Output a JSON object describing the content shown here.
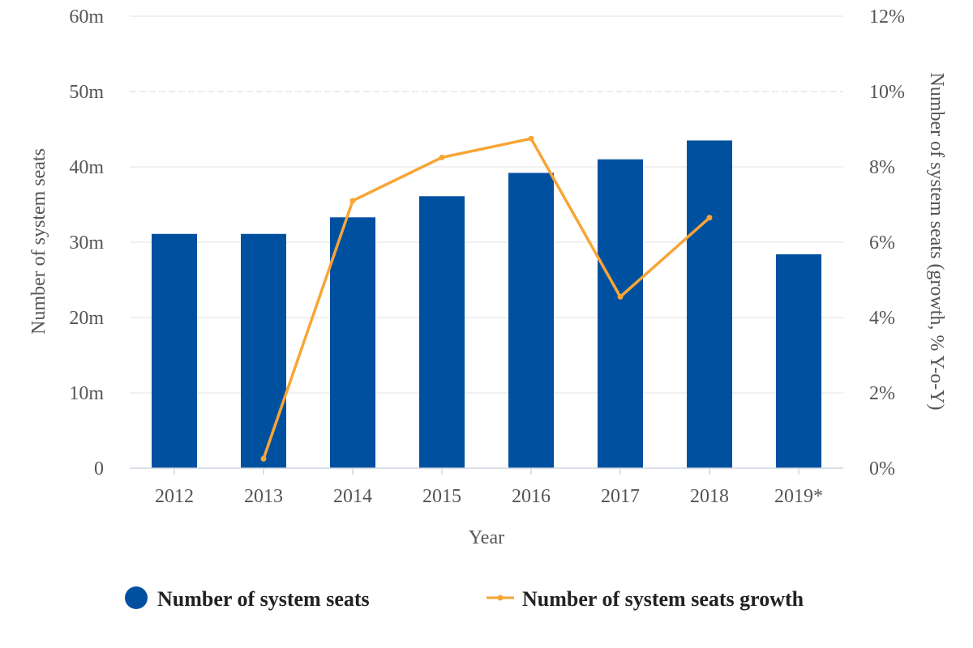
{
  "chart_data": {
    "type": "bar",
    "categories": [
      "2012",
      "2013",
      "2014",
      "2015",
      "2016",
      "2017",
      "2018",
      "2019*"
    ],
    "xlabel": "Year",
    "ylabel": "Number of system seats",
    "ylabel_right": "Number of system seats (growth, % Y-o-Y)",
    "ylim": [
      0,
      60
    ],
    "ylim_right": [
      0,
      12
    ],
    "yticks": [
      "0",
      "10m",
      "20m",
      "30m",
      "40m",
      "50m",
      "60m"
    ],
    "yticks_right": [
      "0%",
      "2%",
      "4%",
      "6%",
      "8%",
      "10%",
      "12%"
    ],
    "grid": true,
    "legend_position": "bottom",
    "series": [
      {
        "name": "Number of system seats",
        "type": "bar",
        "axis": "left",
        "color": "#0050a0",
        "values": [
          31.1,
          31.1,
          33.3,
          36.1,
          39.2,
          41.0,
          43.5,
          28.4
        ]
      },
      {
        "name": "Number of system seats growth",
        "type": "line",
        "axis": "right",
        "color": "#f7a535",
        "values": [
          null,
          0.25,
          7.1,
          8.25,
          8.75,
          4.55,
          6.65,
          null
        ]
      }
    ]
  }
}
